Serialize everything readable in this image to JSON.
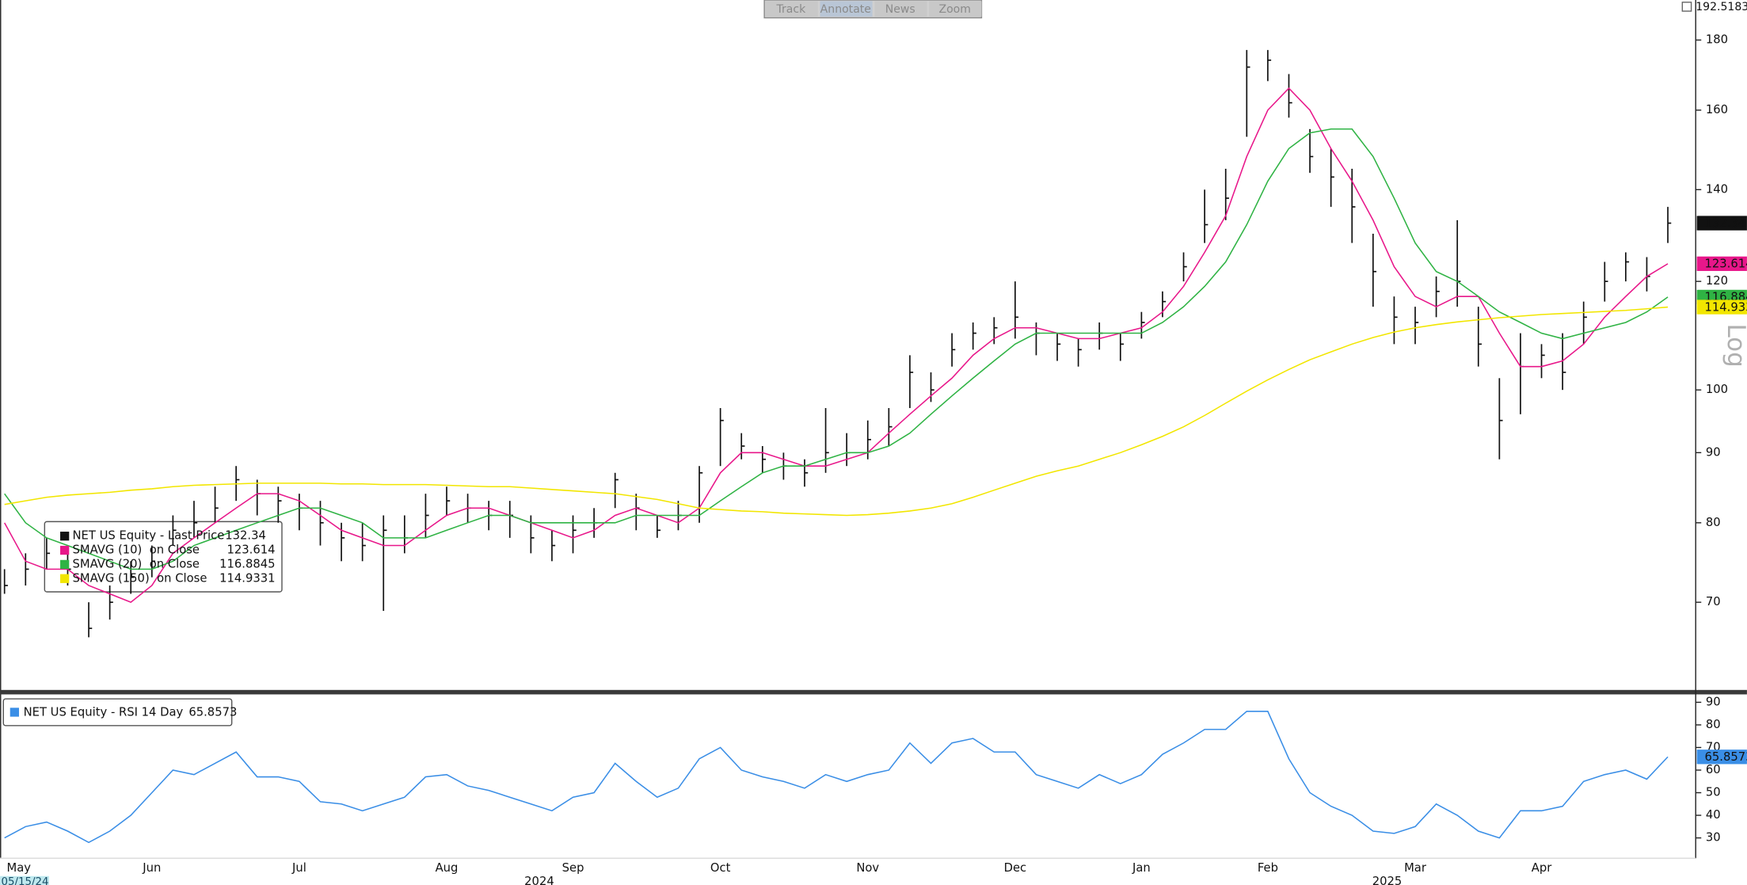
{
  "toolbar": [
    "Track",
    "Annotate",
    "News",
    "Zoom"
  ],
  "chart_data": [
    {
      "type": "ohlc",
      "log_scale": true,
      "grid": false,
      "axis_label": "Log",
      "ylim": [
        60.3,
        192.5183
      ],
      "yticks": [
        70,
        80,
        90,
        100,
        120,
        140,
        160,
        180
      ],
      "series": [
        {
          "name": "NET US Equity - Last Price",
          "type": "ohlc",
          "color": "#111111",
          "high": [
            74,
            76,
            78,
            77,
            70,
            72,
            75,
            77,
            81,
            83,
            85,
            88,
            86,
            85,
            84,
            83,
            80,
            80,
            81,
            81,
            84,
            85,
            84,
            83,
            83,
            81,
            79,
            81,
            82,
            87,
            84,
            81,
            83,
            88,
            97,
            93,
            91,
            90,
            89,
            97,
            93,
            95,
            97,
            106,
            103,
            110,
            112,
            113,
            120,
            112,
            110,
            109,
            112,
            110,
            114,
            118,
            126,
            140,
            145,
            177,
            177,
            170,
            155,
            150,
            145,
            130,
            117,
            115,
            121,
            133,
            115,
            102,
            110,
            108,
            110,
            116,
            124,
            126,
            125,
            136
          ],
          "low": [
            71,
            72,
            74,
            72,
            66,
            68,
            71,
            73,
            77,
            78,
            80,
            83,
            81,
            80,
            79,
            77,
            75,
            75,
            69,
            76,
            78,
            81,
            80,
            79,
            78,
            76,
            75,
            76,
            78,
            82,
            79,
            78,
            79,
            80,
            88,
            89,
            87,
            86,
            85,
            87,
            88,
            89,
            91,
            97,
            98,
            104,
            107,
            108,
            109,
            106,
            105,
            104,
            107,
            105,
            109,
            113,
            120,
            128,
            133,
            153,
            168,
            158,
            144,
            136,
            128,
            115,
            108,
            108,
            113,
            115,
            104,
            89,
            96,
            102,
            100,
            108,
            116,
            120,
            118,
            128
          ],
          "values": [
            72,
            74,
            76,
            74,
            67,
            70,
            73,
            75,
            79,
            80,
            82,
            86,
            84,
            83,
            82,
            80,
            78,
            77,
            79,
            78,
            81,
            83,
            82,
            81,
            81,
            78,
            77,
            79,
            80,
            86,
            82,
            79,
            81,
            87,
            95,
            91,
            89,
            88,
            87,
            90,
            90,
            92,
            94,
            103,
            100,
            107,
            110,
            111,
            113,
            110,
            108,
            107,
            110,
            108,
            112,
            116,
            123,
            132,
            138,
            172,
            174,
            162,
            148,
            143,
            136,
            122,
            113,
            112,
            118,
            120,
            108,
            95,
            104,
            106,
            103,
            113,
            120,
            124,
            121,
            132.34
          ]
        },
        {
          "name": "SMAVG (10)  on Close",
          "type": "line",
          "color": "#e8178a",
          "values": [
            80,
            75,
            74,
            74,
            72,
            71,
            70,
            72,
            76,
            78,
            80,
            82,
            84,
            84,
            83,
            81,
            79,
            78,
            77,
            77,
            79,
            81,
            82,
            82,
            81,
            80,
            79,
            78,
            79,
            81,
            82,
            81,
            80,
            82,
            87,
            90,
            90,
            89,
            88,
            88,
            89,
            90,
            93,
            96,
            99,
            102,
            106,
            109,
            111,
            111,
            110,
            109,
            109,
            110,
            111,
            114,
            119,
            126,
            134,
            148,
            160,
            166,
            160,
            150,
            142,
            133,
            123,
            117,
            115,
            117,
            117,
            110,
            104,
            104,
            105,
            108,
            113,
            117,
            121,
            123.614
          ]
        },
        {
          "name": "SMAVG (20)  on Close",
          "type": "line",
          "color": "#2fb344",
          "values": [
            84,
            80,
            78,
            77,
            76,
            75,
            74,
            74,
            75,
            77,
            78,
            79,
            80,
            81,
            82,
            82,
            81,
            80,
            78,
            78,
            78,
            79,
            80,
            81,
            81,
            80,
            80,
            80,
            80,
            80,
            81,
            81,
            81,
            81,
            83,
            85,
            87,
            88,
            88,
            89,
            90,
            90,
            91,
            93,
            96,
            99,
            102,
            105,
            108,
            110,
            110,
            110,
            110,
            110,
            110,
            112,
            115,
            119,
            124,
            132,
            142,
            150,
            154,
            155,
            155,
            148,
            138,
            128,
            122,
            120,
            117,
            114,
            112,
            110,
            109,
            110,
            111,
            112,
            114,
            116.8845
          ]
        },
        {
          "name": "SMAVG (150)  on Close",
          "type": "line",
          "color": "#f2e600",
          "values": [
            82.5,
            83,
            83.5,
            83.8,
            84,
            84.2,
            84.5,
            84.7,
            85,
            85.2,
            85.3,
            85.4,
            85.5,
            85.5,
            85.5,
            85.5,
            85.4,
            85.4,
            85.3,
            85.3,
            85.3,
            85.2,
            85.1,
            85,
            85,
            84.8,
            84.6,
            84.4,
            84.2,
            84,
            83.6,
            83.2,
            82.6,
            82,
            81.8,
            81.6,
            81.5,
            81.3,
            81.2,
            81.1,
            81,
            81.1,
            81.3,
            81.6,
            82,
            82.6,
            83.5,
            84.5,
            85.5,
            86.5,
            87.3,
            88,
            89,
            90,
            91.2,
            92.5,
            94,
            95.8,
            97.8,
            99.8,
            101.7,
            103.5,
            105.2,
            106.6,
            108,
            109.2,
            110.2,
            111,
            111.6,
            112.1,
            112.5,
            112.9,
            113.2,
            113.5,
            113.7,
            113.9,
            114.1,
            114.3,
            114.6,
            114.9331
          ]
        }
      ]
    },
    {
      "type": "line",
      "log_scale": false,
      "grid": false,
      "ylim": [
        21,
        93
      ],
      "yticks": [
        30,
        40,
        50,
        60,
        70,
        80,
        90
      ],
      "categories": [
        "May",
        null,
        null,
        null,
        null,
        null,
        null,
        "Jun",
        null,
        null,
        null,
        null,
        null,
        null,
        "Jul",
        null,
        null,
        null,
        null,
        null,
        null,
        "Aug",
        null,
        null,
        null,
        null,
        null,
        "Sep",
        null,
        null,
        null,
        null,
        null,
        null,
        "Oct",
        null,
        null,
        null,
        null,
        null,
        null,
        "Nov",
        null,
        null,
        null,
        null,
        null,
        null,
        "Dec",
        null,
        null,
        null,
        null,
        null,
        "Jan",
        null,
        null,
        null,
        null,
        null,
        "Feb",
        null,
        null,
        null,
        null,
        null,
        null,
        "Mar",
        null,
        null,
        null,
        null,
        null,
        "Apr",
        null,
        null,
        null,
        null,
        null,
        null
      ],
      "years": [
        "2024",
        "2025"
      ],
      "start_date": "05/15/24",
      "series": [
        {
          "name": "NET US Equity - RSI 14 Day",
          "type": "line",
          "color": "#3a8ee6",
          "values": [
            30,
            35,
            37,
            33,
            28,
            33,
            40,
            50,
            60,
            58,
            63,
            68,
            57,
            57,
            55,
            46,
            45,
            42,
            45,
            48,
            57,
            58,
            53,
            51,
            48,
            45,
            42,
            48,
            50,
            63,
            55,
            48,
            52,
            65,
            70,
            60,
            57,
            55,
            52,
            58,
            55,
            58,
            60,
            72,
            63,
            72,
            74,
            68,
            68,
            58,
            55,
            52,
            58,
            54,
            58,
            67,
            72,
            78,
            78,
            86,
            86,
            65,
            50,
            44,
            40,
            33,
            32,
            35,
            45,
            40,
            33,
            30,
            42,
            42,
            44,
            55,
            58,
            60,
            56,
            65.8573
          ]
        }
      ]
    }
  ]
}
